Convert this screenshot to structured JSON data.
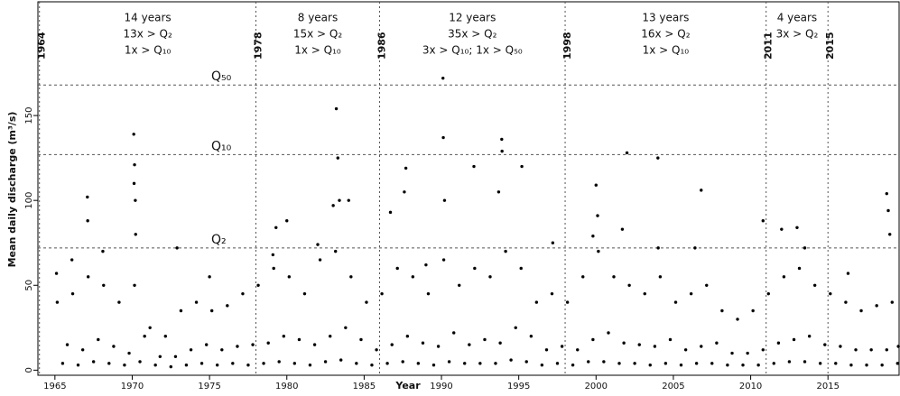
{
  "chart_data": {
    "type": "scatter",
    "x_label": "Year",
    "y_label": "Mean daily discharge (m³/s)",
    "xlim": [
      1963.9,
      2019.6
    ],
    "ylim": [
      -3,
      217
    ],
    "xticks": [
      1965,
      1970,
      1975,
      1980,
      1985,
      1990,
      1995,
      2000,
      2005,
      2010,
      2015
    ],
    "yticks": [
      0,
      50,
      100,
      150
    ],
    "color": "#000000",
    "breaks": [
      {
        "value": 1964,
        "label": "1964"
      },
      {
        "value": 1978,
        "label": "1978"
      },
      {
        "value": 1986,
        "label": "1986"
      },
      {
        "value": 1998,
        "label": "1998"
      },
      {
        "value": 2011,
        "label": "2011"
      },
      {
        "value": 2015,
        "label": "2015"
      }
    ],
    "periods": [
      {
        "years": "14 years",
        "lines": [
          "13x > Q₂",
          "1x > Q₁₀"
        ]
      },
      {
        "years": "8 years",
        "lines": [
          "15x > Q₂",
          "1x > Q₁₀"
        ]
      },
      {
        "years": "12 years",
        "lines": [
          "35x > Q₂",
          "3x > Q₁₀; 1x > Q₅₀"
        ]
      },
      {
        "years": "13 years",
        "lines": [
          "16x > Q₂",
          "1x > Q₁₀"
        ]
      },
      {
        "years": "4 years",
        "lines": [
          "3x > Q₂"
        ]
      }
    ],
    "thresholds": [
      {
        "label": "Q₂",
        "value": 72
      },
      {
        "label": "Q₁₀",
        "value": 127
      },
      {
        "label": "Q₅₀",
        "value": 168
      }
    ],
    "x": [
      1965.15,
      1965.5,
      1965.8,
      1966.15,
      1966.5,
      1966.8,
      1967.15,
      1967.5,
      1967.8,
      1968.15,
      1968.5,
      1968.8,
      1969.15,
      1969.5,
      1969.8,
      1970.15,
      1970.5,
      1970.8,
      1971.15,
      1971.5,
      1971.8,
      1972.15,
      1972.5,
      1972.8,
      1973.15,
      1973.5,
      1973.8,
      1974.15,
      1974.5,
      1974.8,
      1975.15,
      1975.5,
      1975.8,
      1976.15,
      1976.5,
      1976.8,
      1977.15,
      1977.5,
      1977.8,
      1978.15,
      1978.5,
      1978.8,
      1979.15,
      1979.5,
      1979.8,
      1980.15,
      1980.5,
      1980.8,
      1981.15,
      1981.5,
      1981.8,
      1982.15,
      1982.5,
      1982.8,
      1983.15,
      1983.5,
      1983.8,
      1984.15,
      1984.5,
      1984.8,
      1985.15,
      1985.5,
      1985.8,
      1986.15,
      1986.5,
      1986.8,
      1987.15,
      1987.5,
      1987.8,
      1988.15,
      1988.5,
      1988.8,
      1989.15,
      1989.5,
      1989.8,
      1990.15,
      1990.5,
      1990.8,
      1991.15,
      1991.5,
      1991.8,
      1992.15,
      1992.5,
      1992.8,
      1993.15,
      1993.5,
      1993.8,
      1994.15,
      1994.5,
      1994.8,
      1995.15,
      1995.5,
      1995.8,
      1996.15,
      1996.5,
      1996.8,
      1997.15,
      1997.5,
      1997.8,
      1998.15,
      1998.5,
      1998.8,
      1999.15,
      1999.5,
      1999.8,
      2000.15,
      2000.5,
      2000.8,
      2001.15,
      2001.5,
      2001.8,
      2002.15,
      2002.5,
      2002.8,
      2003.15,
      2003.5,
      2003.8,
      2004.15,
      2004.5,
      2004.8,
      2005.15,
      2005.5,
      2005.8,
      2006.15,
      2006.5,
      2006.8,
      2007.15,
      2007.5,
      2007.8,
      2008.15,
      2008.5,
      2008.8,
      2009.15,
      2009.5,
      2009.8,
      2010.15,
      2010.5,
      2010.8,
      2011.15,
      2011.5,
      2011.8,
      2012.15,
      2012.5,
      2012.8,
      2013.15,
      2013.5,
      2013.8,
      2014.15,
      2014.5,
      2014.8,
      2015.15,
      2015.5,
      2015.8,
      2016.15,
      2016.5,
      2016.8,
      2017.15,
      2017.5,
      2017.8,
      2018.15,
      2018.5,
      2018.8,
      2019.15,
      2019.5,
      2019.55,
      1965.1,
      1966.1,
      1967.1,
      1967.12,
      1968.1,
      1970.1,
      1970.15,
      1970.12,
      1970.2,
      1970.22,
      1972.9,
      1975.0,
      1979.1,
      1979.3,
      1980.0,
      1982.0,
      1983.0,
      1983.2,
      1983.3,
      1983.4,
      1984.0,
      1986.7,
      1987.7,
      1987.6,
      1989.0,
      1990.1,
      1990.12,
      1990.2,
      1992.1,
      1993.9,
      1993.92,
      1995.2,
      1993.7,
      1997.2,
      1999.8,
      2000.0,
      2000.1,
      2002.0,
      2001.7,
      2004.0,
      2004.02,
      2006.8,
      2006.4,
      2010.8,
      2012.0,
      2013.0,
      2013.5,
      2016.3,
      2018.8,
      2018.9,
      2019.0
    ],
    "values": [
      40,
      4,
      15,
      45,
      3,
      12,
      55,
      5,
      18,
      50,
      4,
      14,
      40,
      3,
      10,
      50,
      5,
      20,
      25,
      3,
      8,
      20,
      2,
      8,
      35,
      3,
      12,
      40,
      4,
      15,
      35,
      3,
      12,
      38,
      4,
      14,
      45,
      3,
      15,
      50,
      4,
      16,
      60,
      5,
      20,
      55,
      4,
      18,
      45,
      3,
      15,
      65,
      5,
      20,
      70,
      6,
      25,
      55,
      4,
      18,
      40,
      3,
      12,
      45,
      4,
      15,
      60,
      5,
      20,
      55,
      4,
      16,
      45,
      3,
      14,
      65,
      5,
      22,
      50,
      4,
      15,
      60,
      4,
      18,
      55,
      4,
      16,
      70,
      6,
      25,
      60,
      5,
      20,
      40,
      3,
      12,
      45,
      4,
      14,
      40,
      3,
      12,
      55,
      5,
      18,
      70,
      5,
      22,
      55,
      4,
      16,
      50,
      4,
      15,
      45,
      3,
      14,
      55,
      4,
      18,
      40,
      3,
      12,
      45,
      4,
      14,
      50,
      4,
      16,
      35,
      3,
      10,
      30,
      3,
      10,
      35,
      3,
      12,
      45,
      4,
      16,
      55,
      5,
      18,
      60,
      5,
      20,
      50,
      4,
      15,
      45,
      4,
      14,
      40,
      3,
      12,
      35,
      3,
      12,
      38,
      3,
      12,
      40,
      4,
      14,
      57,
      65,
      102,
      88,
      70,
      139,
      121,
      110,
      100,
      80,
      72,
      55,
      68,
      84,
      88,
      74,
      97,
      154,
      125,
      100,
      100,
      93,
      119,
      105,
      62,
      172,
      137,
      100,
      120,
      136,
      129,
      120,
      105,
      75,
      79,
      109,
      91,
      128,
      83,
      125,
      72,
      106,
      72,
      88,
      83,
      84,
      72,
      57,
      104,
      94,
      80
    ]
  }
}
